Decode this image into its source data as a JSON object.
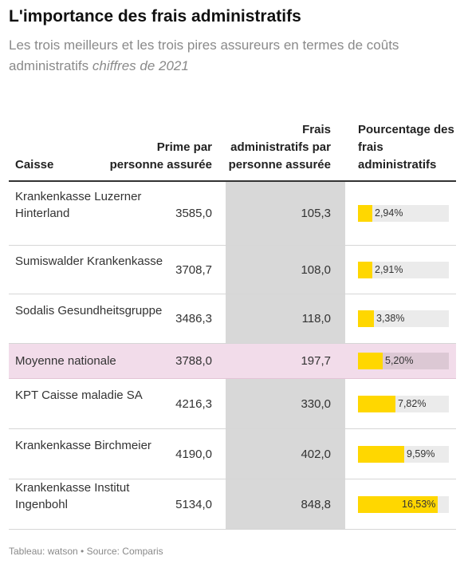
{
  "title": "L'importance des frais administratifs",
  "subtitle": "Les trois meilleurs et les trois pires assureurs en termes de coûts administratifs",
  "subtitle_em": "chiffres de 2021",
  "headers": {
    "caisse": "Caisse",
    "prime": "Prime par personne assurée",
    "frais": "Frais administratifs par personne assurée",
    "pct": "Pourcentage des frais administratifs"
  },
  "rows": [
    {
      "name": "Krankenkasse Luzerner Hinterland",
      "prime": "3585,0",
      "frais": "105,3",
      "pct": 2.94,
      "pct_label": "2,94%",
      "highlight": false
    },
    {
      "name": "Sumiswalder Krankenkasse",
      "prime": "3708,7",
      "frais": "108,0",
      "pct": 2.91,
      "pct_label": "2,91%",
      "highlight": false
    },
    {
      "name": "Sodalis Gesundheitsgruppe",
      "prime": "3486,3",
      "frais": "118,0",
      "pct": 3.38,
      "pct_label": "3,38%",
      "highlight": false
    },
    {
      "name": "Moyenne nationale",
      "prime": "3788,0",
      "frais": "197,7",
      "pct": 5.2,
      "pct_label": "5,20%",
      "highlight": true
    },
    {
      "name": "KPT Caisse maladie SA",
      "prime": "4216,3",
      "frais": "330,0",
      "pct": 7.82,
      "pct_label": "7,82%",
      "highlight": false
    },
    {
      "name": "Krankenkasse Birchmeier",
      "prime": "4190,0",
      "frais": "402,0",
      "pct": 9.59,
      "pct_label": "9,59%",
      "highlight": false
    },
    {
      "name": "Krankenkasse Institut Ingenbohl",
      "prime": "5134,0",
      "frais": "848,8",
      "pct": 16.53,
      "pct_label": "16,53%",
      "highlight": false
    }
  ],
  "bar_max": 18.9,
  "colors": {
    "bar": "#ffd700",
    "highlight_row": "#f2dcea",
    "gray_column": "#d8d8d8"
  },
  "footer": "Tableau: watson • Source: Comparis"
}
